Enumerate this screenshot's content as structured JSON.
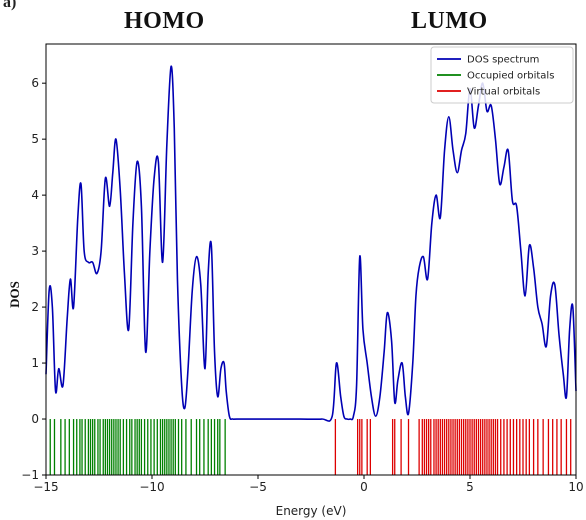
{
  "panel_label": "a)",
  "headings": {
    "homo": "HOMO",
    "lumo": "LUMO"
  },
  "chart_data": {
    "type": "line",
    "xlabel": "Energy (eV)",
    "ylabel": "DOS",
    "xlim": [
      -15,
      10
    ],
    "ylim": [
      -1,
      6.7
    ],
    "xticks": [
      -15,
      -10,
      -5,
      0,
      5,
      10
    ],
    "xtick_labels": [
      "−15",
      "−10",
      "−5",
      "0",
      "5",
      "10"
    ],
    "yticks": [
      -1,
      0,
      1,
      2,
      3,
      4,
      5,
      6
    ],
    "ytick_labels": [
      "−1",
      "0",
      "1",
      "2",
      "3",
      "4",
      "5",
      "6"
    ],
    "grid": false,
    "legend_position": "top-right",
    "series": [
      {
        "name": "DOS spectrum",
        "color": "#0000b4",
        "x": [
          -15,
          -14.85,
          -14.7,
          -14.55,
          -14.4,
          -14.2,
          -14.0,
          -13.85,
          -13.7,
          -13.5,
          -13.35,
          -13.2,
          -13.0,
          -12.8,
          -12.6,
          -12.4,
          -12.2,
          -12.0,
          -11.85,
          -11.7,
          -11.5,
          -11.3,
          -11.1,
          -10.9,
          -10.7,
          -10.5,
          -10.3,
          -10.1,
          -9.9,
          -9.7,
          -9.5,
          -9.3,
          -9.1,
          -8.95,
          -8.8,
          -8.6,
          -8.45,
          -8.3,
          -8.1,
          -7.9,
          -7.7,
          -7.5,
          -7.35,
          -7.2,
          -7.05,
          -6.9,
          -6.75,
          -6.6,
          -6.5,
          -6.35,
          -6.2,
          -6.0,
          -5.0,
          -3.0,
          -2.0,
          -1.5,
          -1.3,
          -1.1,
          -0.95,
          -0.8,
          -0.65,
          -0.5,
          -0.35,
          -0.2,
          -0.05,
          0.15,
          0.35,
          0.55,
          0.75,
          0.95,
          1.1,
          1.3,
          1.45,
          1.6,
          1.8,
          1.95,
          2.1,
          2.3,
          2.45,
          2.6,
          2.8,
          3.0,
          3.2,
          3.4,
          3.6,
          3.8,
          4.0,
          4.2,
          4.4,
          4.6,
          4.8,
          5.0,
          5.2,
          5.4,
          5.6,
          5.8,
          6.0,
          6.2,
          6.4,
          6.6,
          6.8,
          7.0,
          7.2,
          7.4,
          7.6,
          7.8,
          8.0,
          8.2,
          8.4,
          8.6,
          8.8,
          9.0,
          9.2,
          9.4,
          9.55,
          9.7,
          9.85,
          10.0
        ],
        "y": [
          0.8,
          2.3,
          2.0,
          0.5,
          0.9,
          0.6,
          1.8,
          2.5,
          2.0,
          3.6,
          4.2,
          3.0,
          2.8,
          2.8,
          2.6,
          3.0,
          4.3,
          3.8,
          4.4,
          5.0,
          4.1,
          2.6,
          1.6,
          3.5,
          4.6,
          3.8,
          1.2,
          3.0,
          4.3,
          4.6,
          2.8,
          4.9,
          6.3,
          5.2,
          2.5,
          0.6,
          0.2,
          0.9,
          2.3,
          2.9,
          2.4,
          0.9,
          2.6,
          3.1,
          1.2,
          0.4,
          0.9,
          1.0,
          0.5,
          0.05,
          0.0,
          0.0,
          0.0,
          0.0,
          0.0,
          0.05,
          1.0,
          0.4,
          0.05,
          0.0,
          0.0,
          0.05,
          0.6,
          2.9,
          1.6,
          1.0,
          0.4,
          0.05,
          0.4,
          1.2,
          1.9,
          1.4,
          0.3,
          0.7,
          1.0,
          0.4,
          0.1,
          1.0,
          2.2,
          2.7,
          2.9,
          2.5,
          3.5,
          4.0,
          3.6,
          4.8,
          5.4,
          4.8,
          4.4,
          4.8,
          5.1,
          5.9,
          5.2,
          5.6,
          6.0,
          5.5,
          5.6,
          5.0,
          4.2,
          4.5,
          4.8,
          3.9,
          3.8,
          3.0,
          2.2,
          3.1,
          2.7,
          2.0,
          1.7,
          1.3,
          2.2,
          2.4,
          1.5,
          0.8,
          0.4,
          1.6,
          2.0,
          0.5
        ]
      },
      {
        "name": "Occupied orbitals",
        "color": "#008000",
        "style": "stick",
        "y_range": [
          -1,
          0
        ],
        "x": [
          -14.8,
          -14.6,
          -14.3,
          -14.1,
          -13.9,
          -13.7,
          -13.55,
          -13.4,
          -13.3,
          -13.15,
          -13.0,
          -12.9,
          -12.8,
          -12.7,
          -12.55,
          -12.45,
          -12.3,
          -12.2,
          -12.1,
          -12.0,
          -11.9,
          -11.8,
          -11.7,
          -11.6,
          -11.5,
          -11.35,
          -11.2,
          -11.05,
          -10.95,
          -10.8,
          -10.7,
          -10.6,
          -10.5,
          -10.35,
          -10.2,
          -10.05,
          -9.9,
          -9.75,
          -9.6,
          -9.5,
          -9.4,
          -9.3,
          -9.2,
          -9.1,
          -9.0,
          -8.9,
          -8.75,
          -8.6,
          -8.4,
          -8.15,
          -7.9,
          -7.75,
          -7.55,
          -7.35,
          -7.2,
          -7.05,
          -6.9,
          -6.8,
          -6.55
        ]
      },
      {
        "name": "Virtual orbitals",
        "color": "#dd0000",
        "style": "stick",
        "y_range": [
          -1,
          0
        ],
        "x": [
          -1.35,
          -0.3,
          -0.2,
          -0.1,
          0.15,
          0.3,
          1.35,
          1.45,
          1.75,
          2.1,
          2.6,
          2.75,
          2.85,
          2.95,
          3.05,
          3.15,
          3.3,
          3.4,
          3.5,
          3.6,
          3.7,
          3.8,
          3.9,
          4.0,
          4.1,
          4.2,
          4.3,
          4.4,
          4.5,
          4.6,
          4.7,
          4.8,
          4.9,
          5.0,
          5.1,
          5.2,
          5.3,
          5.4,
          5.5,
          5.6,
          5.7,
          5.8,
          5.9,
          6.0,
          6.1,
          6.2,
          6.3,
          6.45,
          6.6,
          6.75,
          6.9,
          7.05,
          7.2,
          7.35,
          7.5,
          7.65,
          7.8,
          8.0,
          8.2,
          8.45,
          8.7,
          8.9,
          9.1,
          9.3,
          9.55,
          9.75
        ]
      }
    ]
  }
}
